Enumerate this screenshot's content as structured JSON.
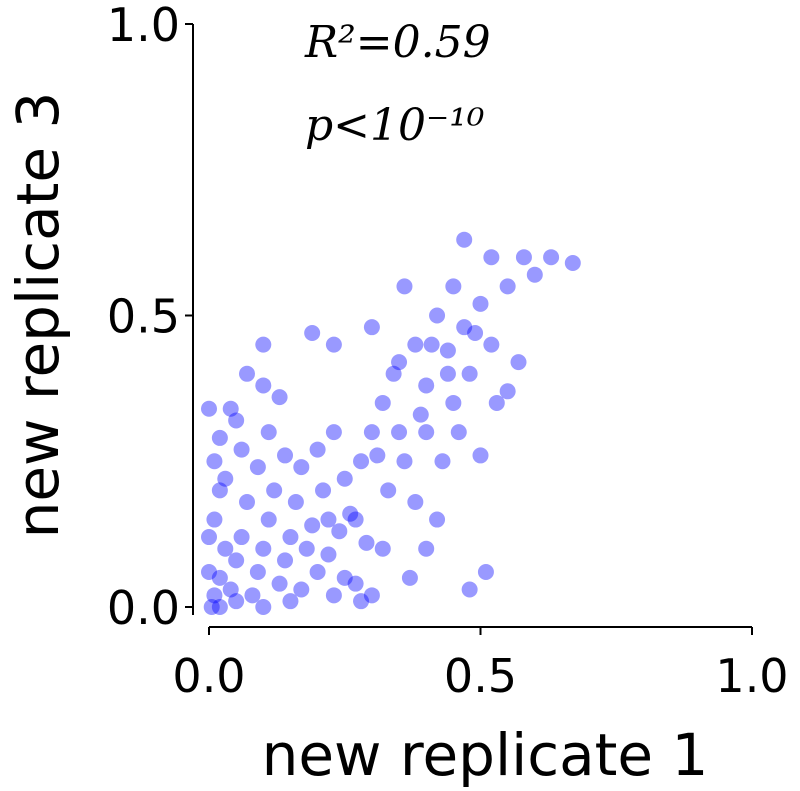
{
  "chart_data": {
    "type": "scatter",
    "xlabel": "new replicate 1",
    "ylabel": "new replicate 3",
    "annotations": [
      "R²=0.59",
      "p<10⁻¹⁰"
    ],
    "xlim": [
      0,
      1
    ],
    "ylim": [
      0,
      1
    ],
    "xticks": [
      {
        "value": 0,
        "label": "0.0"
      },
      {
        "value": 0.5,
        "label": "0.5"
      },
      {
        "value": 1,
        "label": "1.0"
      }
    ],
    "yticks": [
      {
        "value": 0,
        "label": "0.0"
      },
      {
        "value": 0.5,
        "label": "0.5"
      },
      {
        "value": 1,
        "label": "1.0"
      }
    ],
    "color": "#0000ff",
    "x": [
      0.01,
      0.02,
      0.03,
      0.01,
      0.02,
      0.04,
      0.05,
      0.06,
      0.07,
      0.03,
      0.08,
      0.09,
      0.1,
      0.11,
      0.12,
      0.13,
      0.14,
      0.15,
      0.16,
      0.17,
      0.18,
      0.19,
      0.2,
      0.21,
      0.22,
      0.23,
      0.24,
      0.25,
      0.26,
      0.27,
      0.28,
      0.29,
      0.005,
      0.02,
      0.05,
      0.1,
      0.15,
      0.0,
      0.0,
      0.01,
      0.02,
      0.0,
      0.04,
      0.06,
      0.09,
      0.11,
      0.14,
      0.17,
      0.2,
      0.23,
      0.07,
      0.1,
      0.13,
      0.05,
      0.1,
      0.23,
      0.19,
      0.3,
      0.32,
      0.35,
      0.38,
      0.4,
      0.42,
      0.44,
      0.45,
      0.47,
      0.5,
      0.52,
      0.55,
      0.58,
      0.6,
      0.63,
      0.67,
      0.47,
      0.52,
      0.48,
      0.45,
      0.4,
      0.36,
      0.33,
      0.38,
      0.42,
      0.5,
      0.55,
      0.57,
      0.53,
      0.36,
      0.3,
      0.34,
      0.43,
      0.32,
      0.37,
      0.4,
      0.48,
      0.51,
      0.3,
      0.27,
      0.25,
      0.22,
      0.28,
      0.39,
      0.46,
      0.49,
      0.44,
      0.41,
      0.35,
      0.31
    ],
    "y": [
      0.02,
      0.05,
      0.1,
      0.15,
      0.2,
      0.03,
      0.08,
      0.12,
      0.18,
      0.22,
      0.02,
      0.06,
      0.1,
      0.15,
      0.2,
      0.04,
      0.08,
      0.12,
      0.18,
      0.03,
      0.1,
      0.14,
      0.06,
      0.2,
      0.09,
      0.02,
      0.13,
      0.05,
      0.16,
      0.04,
      0.01,
      0.11,
      0.0,
      0.0,
      0.01,
      0.0,
      0.01,
      0.06,
      0.12,
      0.25,
      0.29,
      0.34,
      0.34,
      0.27,
      0.24,
      0.3,
      0.26,
      0.24,
      0.27,
      0.3,
      0.4,
      0.38,
      0.36,
      0.32,
      0.45,
      0.45,
      0.47,
      0.3,
      0.35,
      0.42,
      0.45,
      0.38,
      0.5,
      0.44,
      0.55,
      0.48,
      0.52,
      0.45,
      0.55,
      0.6,
      0.57,
      0.6,
      0.59,
      0.63,
      0.6,
      0.4,
      0.35,
      0.3,
      0.25,
      0.2,
      0.18,
      0.15,
      0.26,
      0.37,
      0.42,
      0.35,
      0.55,
      0.48,
      0.4,
      0.25,
      0.1,
      0.05,
      0.1,
      0.03,
      0.06,
      0.02,
      0.15,
      0.22,
      0.15,
      0.25,
      0.33,
      0.3,
      0.47,
      0.4,
      0.45,
      0.3,
      0.26
    ]
  }
}
